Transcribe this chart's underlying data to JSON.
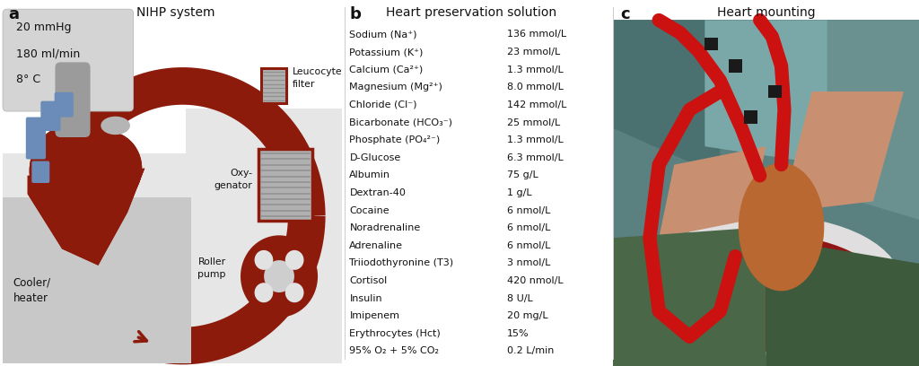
{
  "panel_a_title": "NIHP system",
  "panel_b_title": "Heart preservation solution",
  "panel_c_title": "Heart mounting",
  "label_a": "a",
  "label_b": "b",
  "label_c": "c",
  "params_lines": [
    "20 mmHg",
    "180 ml/min",
    "8° C"
  ],
  "leucocyte_filter": "Leucocyte\nfilter",
  "oxygenator": "Oxy-\ngenator",
  "roller_pump": "Roller\npump",
  "cooler_heater": "Cooler/\nheater",
  "bg_gray": "#e6e6e6",
  "bg_white": "#ffffff",
  "red": "#8c1b0b",
  "blue": "#6b8cb8",
  "gray_vessel": "#9b9b9b",
  "light_gray_vessel": "#b5b5b5",
  "device_gray": "#b0b0b0",
  "device_line_gray": "#909090",
  "params_bg": "#d4d4d4",
  "params_border": "#b8b8b8",
  "ingredients": [
    [
      "Sodium (Na⁺)",
      "136 mmol/L"
    ],
    [
      "Potassium (K⁺)",
      "23 mmol/L"
    ],
    [
      "Calcium (Ca²⁺)",
      "1.3 mmol/L"
    ],
    [
      "Magnesium (Mg²⁺)",
      "8.0 mmol/L"
    ],
    [
      "Chloride (Cl⁻)",
      "142 mmol/L"
    ],
    [
      "Bicarbonate (HCO₃⁻)",
      "25 mmol/L"
    ],
    [
      "Phosphate (PO₄²⁻)",
      "1.3 mmol/L"
    ],
    [
      "D-Glucose",
      "6.3 mmol/L"
    ],
    [
      "Albumin",
      "75 g/L"
    ],
    [
      "Dextran-40",
      "1 g/L"
    ],
    [
      "Cocaine",
      "6 nmol/L"
    ],
    [
      "Noradrenaline",
      "6 nmol/L"
    ],
    [
      "Adrenaline",
      "6 nmol/L"
    ],
    [
      "Triiodothyronine (T3)",
      "3 nmol/L"
    ],
    [
      "Cortisol",
      "420 nmol/L"
    ],
    [
      "Insulin",
      "8 U/L"
    ],
    [
      "Imipenem",
      "20 mg/L"
    ],
    [
      "Erythrocytes (Hct)",
      "15%"
    ],
    [
      "95% O₂ + 5% CO₂",
      "0.2 L/min"
    ]
  ],
  "photo_teal_bg": "#5a8080",
  "photo_teal_mid": "#4a7070",
  "photo_teal_light": "#6a9090",
  "photo_skin": "#c89070",
  "photo_heart_orange": "#b86830",
  "photo_blood": "#880000",
  "photo_tube": "#cc1111",
  "photo_glove_green": "#4a6848",
  "photo_white_bowl": "#e0dede",
  "black": "#111111",
  "divider": "#cccccc"
}
